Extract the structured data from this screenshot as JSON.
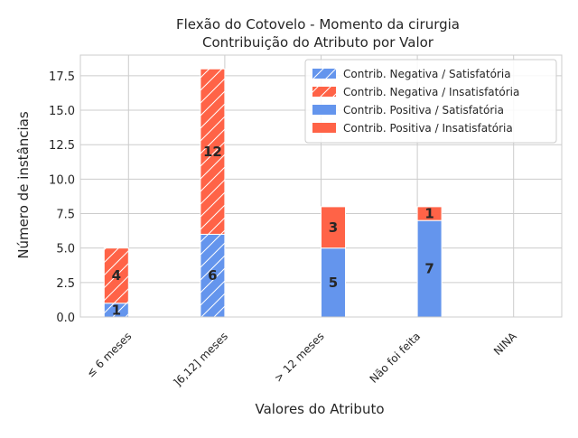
{
  "chart_data": {
    "type": "bar",
    "stacked": true,
    "title": "Flexão do Cotovelo - Momento da cirurgia",
    "subtitle": "Contribuição do Atributo por Valor",
    "xlabel": "Valores do Atributo",
    "ylabel": "Número de instâncias",
    "ylim": [
      0,
      19
    ],
    "yticks": [
      "0.0",
      "2.5",
      "5.0",
      "7.5",
      "10.0",
      "12.5",
      "15.0",
      "17.5"
    ],
    "grid": true,
    "legend_position": "top-right",
    "categories": [
      "≤ 6 meses",
      "]6,12] meses",
      "> 12 meses",
      "Não foi feita",
      "NINA"
    ],
    "series": [
      {
        "name": "Contrib. Negativa / Satisfatória",
        "color": "#6495ED",
        "hatched": true,
        "group": "negativa",
        "values": [
          1,
          6,
          0,
          0,
          0
        ]
      },
      {
        "name": "Contrib. Negativa / Insatisfatória",
        "color": "#FF6347",
        "hatched": true,
        "group": "negativa",
        "values": [
          4,
          12,
          0,
          0,
          0
        ]
      },
      {
        "name": "Contrib. Positiva / Satisfatória",
        "color": "#6495ED",
        "hatched": false,
        "group": "positiva",
        "values": [
          0,
          0,
          5,
          7,
          0
        ]
      },
      {
        "name": "Contrib. Positiva / Insatisfatória",
        "color": "#FF6347",
        "hatched": false,
        "group": "positiva",
        "values": [
          0,
          0,
          3,
          1,
          0
        ]
      }
    ]
  }
}
